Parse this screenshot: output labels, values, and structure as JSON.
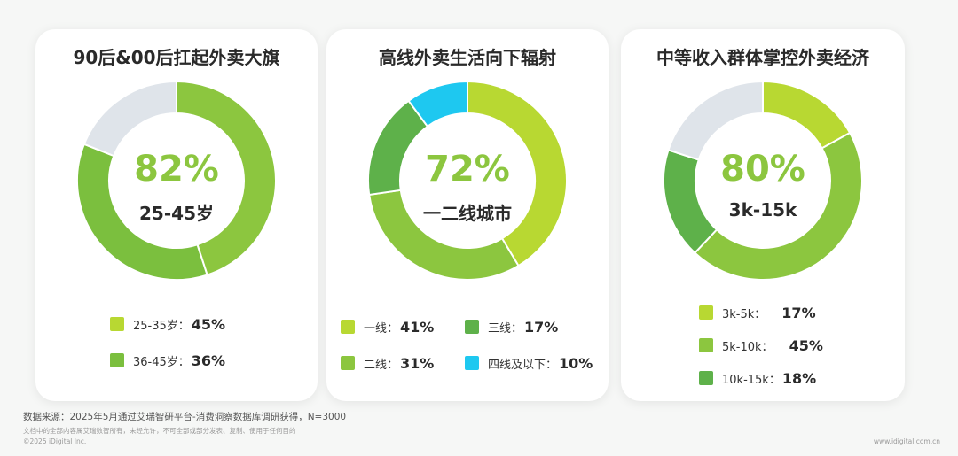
{
  "colors": {
    "c1": "#b8d832",
    "c2": "#8cc63f",
    "c3": "#5eb14a",
    "c4": "#1ec8f0",
    "gray": "#dfe4ea",
    "accent": "#8cc63f"
  },
  "chart_data": [
    {
      "type": "pie",
      "title": "90后&00后扛起外卖大旗",
      "center_value": "82%",
      "center_label": "25-45岁",
      "slices": [
        {
          "label": "25-35岁：",
          "value": 45,
          "value_text": "45%",
          "color": "#8cc63f"
        },
        {
          "label": "36-45岁：",
          "value": 36,
          "value_text": "36%",
          "color": "#7bbf3e"
        },
        {
          "label": "",
          "value": 19,
          "value_text": "",
          "color": "#dfe4ea"
        }
      ],
      "legend": [
        {
          "label": "25-35岁：",
          "value": "45%",
          "color": "#b8d832"
        },
        {
          "label": "36-45岁：",
          "value": "36%",
          "color": "#7bbf3e"
        }
      ]
    },
    {
      "type": "pie",
      "title": "高线外卖生活向下辐射",
      "center_value": "72%",
      "center_label": "一二线城市",
      "slices": [
        {
          "label": "一线：",
          "value": 41,
          "value_text": "41%",
          "color": "#b8d832"
        },
        {
          "label": "二线：",
          "value": 31,
          "value_text": "31%",
          "color": "#8cc63f"
        },
        {
          "label": "三线：",
          "value": 17,
          "value_text": "17%",
          "color": "#5eb14a"
        },
        {
          "label": "四线及以下：",
          "value": 10,
          "value_text": "10%",
          "color": "#1ec8f0"
        }
      ]
    },
    {
      "type": "pie",
      "title": "中等收入群体掌控外卖经济",
      "center_value": "80%",
      "center_label": "3k-15k",
      "slices": [
        {
          "label": "3k-5k：",
          "value": 17,
          "value_text": "17%",
          "color": "#b8d832"
        },
        {
          "label": "5k-10k：",
          "value": 45,
          "value_text": "45%",
          "color": "#8cc63f"
        },
        {
          "label": "10k-15k：",
          "value": 18,
          "value_text": "18%",
          "color": "#5eb14a"
        },
        {
          "label": "",
          "value": 20,
          "value_text": "",
          "color": "#dfe4ea"
        }
      ]
    }
  ],
  "footer": {
    "source": "数据来源：2025年5月通过艾瑞智研平台-消费洞察数据库调研获得，N=3000",
    "copyright_note": "文档中的全部内容属艾瑞数智所有，未经允许，不可全部或部分发表、复制、使用于任何目的",
    "copyright": "©2025 iDigital Inc.",
    "url": "www.idigital.com.cn"
  }
}
